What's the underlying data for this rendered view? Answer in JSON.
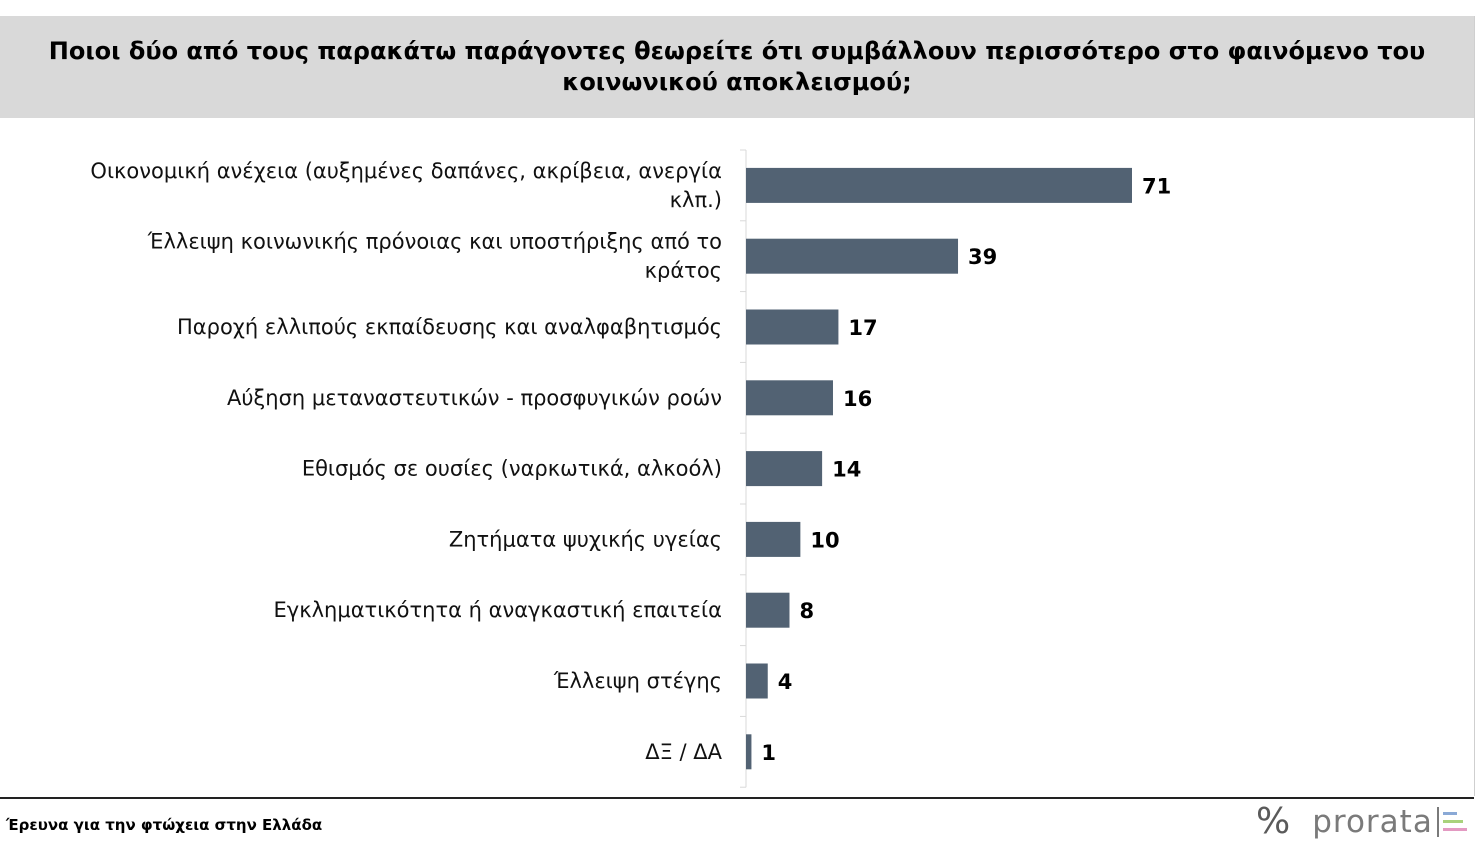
{
  "title": "Ποιοι δύο από τους παρακάτω παράγοντες θεωρείτε ότι συμβάλλουν περισσότερο στο φαινόμενο του κοινωνικού αποκλεισμού;",
  "footer": {
    "source": "Έρευνα για την φτώχεια στην Ελλάδα",
    "brand": "prorata",
    "brand_symbol": "%"
  },
  "colors": {
    "bar": "#526273",
    "title_band": "#d9d9d9",
    "logo_lines": [
      "#8aa9d6",
      "#a9d27c",
      "#e39ac2"
    ]
  },
  "chart_data": {
    "type": "bar",
    "orientation": "horizontal",
    "title": "Ποιοι δύο από τους παρακάτω παράγοντες θεωρείτε ότι συμβάλλουν περισσότερο στο φαινόμενο του κοινωνικού αποκλεισμού;",
    "categories": [
      [
        "Οικονομική ανέχεια (αυξημένες δαπάνες, ακρίβεια, ανεργία",
        "κλπ.)"
      ],
      [
        "Έλλειψη κοινωνικής πρόνοιας και υποστήριξης από το",
        "κράτος"
      ],
      [
        "Παροχή ελλιπούς εκπαίδευσης και αναλφαβητισμός"
      ],
      [
        "Αύξηση μεταναστευτικών - προσφυγικών ροών"
      ],
      [
        "Εθισμός σε ουσίες (ναρκωτικά, αλκοόλ)"
      ],
      [
        "Ζητήματα ψυχικής υγείας"
      ],
      [
        "Εγκληματικότητα ή αναγκαστική επαιτεία"
      ],
      [
        "Έλλειψη στέγης"
      ],
      [
        "ΔΞ / ΔΑ"
      ]
    ],
    "values": [
      71,
      39,
      17,
      16,
      14,
      10,
      8,
      4,
      1
    ],
    "xlim": [
      0,
      100
    ],
    "data_labels": true,
    "grid": false,
    "legend": "none"
  }
}
